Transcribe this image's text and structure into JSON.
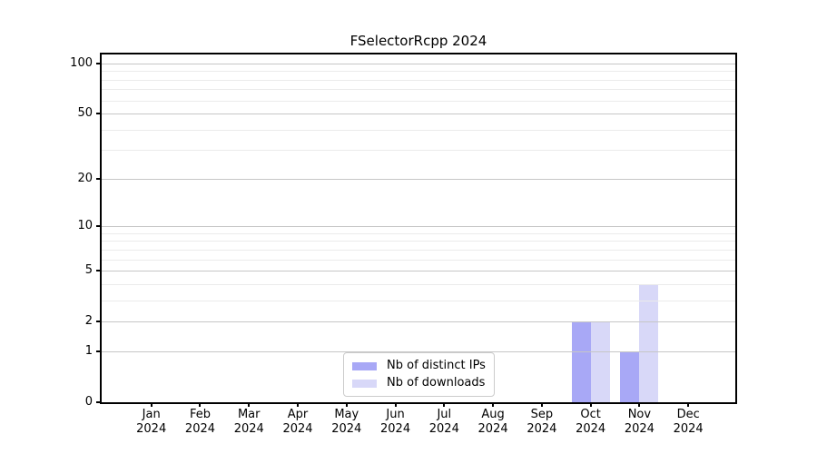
{
  "title": "FSelectorRcpp 2024",
  "chart_data": {
    "type": "bar",
    "title": "FSelectorRcpp 2024",
    "categories": [
      {
        "month": "Jan",
        "year": "2024"
      },
      {
        "month": "Feb",
        "year": "2024"
      },
      {
        "month": "Mar",
        "year": "2024"
      },
      {
        "month": "Apr",
        "year": "2024"
      },
      {
        "month": "May",
        "year": "2024"
      },
      {
        "month": "Jun",
        "year": "2024"
      },
      {
        "month": "Jul",
        "year": "2024"
      },
      {
        "month": "Aug",
        "year": "2024"
      },
      {
        "month": "Sep",
        "year": "2024"
      },
      {
        "month": "Oct",
        "year": "2024"
      },
      {
        "month": "Nov",
        "year": "2024"
      },
      {
        "month": "Dec",
        "year": "2024"
      }
    ],
    "series": [
      {
        "name": "Nb of distinct IPs",
        "color": "#a8a8f6",
        "values": [
          0,
          0,
          0,
          0,
          0,
          0,
          0,
          0,
          0,
          2,
          1,
          0
        ]
      },
      {
        "name": "Nb of downloads",
        "color": "#d8d8f8",
        "values": [
          0,
          0,
          0,
          0,
          0,
          0,
          0,
          0,
          0,
          2,
          4,
          0
        ]
      }
    ],
    "yscale": "log1p",
    "yticks": [
      0,
      1,
      2,
      5,
      10,
      20,
      50,
      100
    ],
    "yminor": [
      3,
      4,
      6,
      7,
      8,
      9,
      30,
      40,
      60,
      70,
      80,
      90
    ],
    "ylim": [
      0,
      113
    ],
    "xlabel": "",
    "ylabel": "",
    "grid": "horizontal",
    "legend_position": "lower center",
    "colors": {
      "background": "#ffffff",
      "frame": "#000000",
      "grid_major": "#c6c6c6",
      "grid_minor": "#ebebeb",
      "text": "#000000"
    }
  }
}
